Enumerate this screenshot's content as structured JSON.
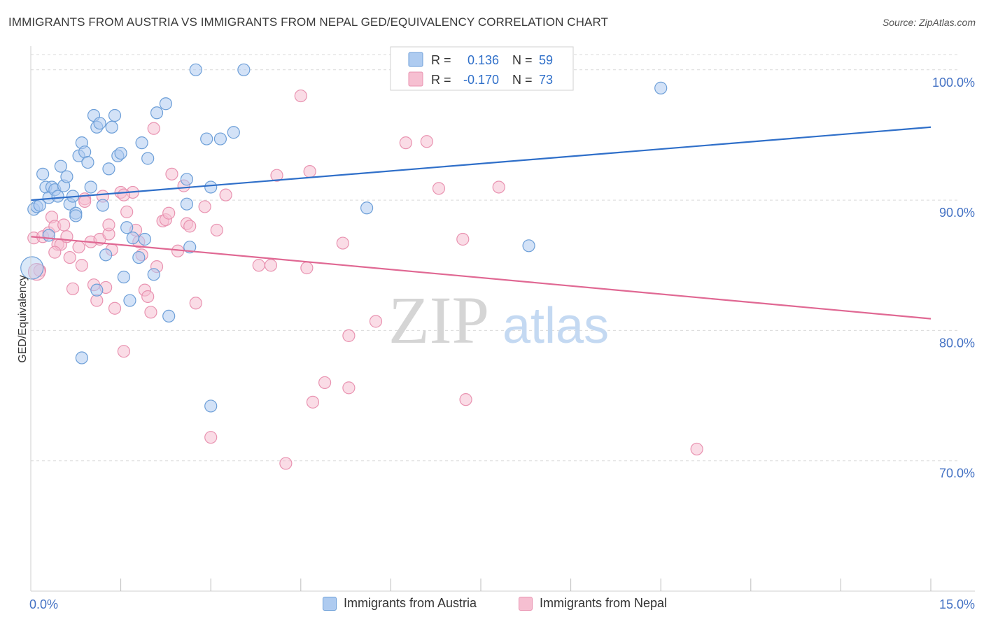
{
  "title": "IMMIGRANTS FROM AUSTRIA VS IMMIGRANTS FROM NEPAL GED/EQUIVALENCY CORRELATION CHART",
  "source": "Source: ZipAtlas.com",
  "watermark": {
    "zip": "ZIP",
    "atlas": "atlas"
  },
  "colors": {
    "austria_fill": "#aecbf0",
    "austria_stroke": "#6d9fd8",
    "austria_line": "#2f6fc9",
    "nepal_fill": "#f6bfd1",
    "nepal_stroke": "#e993b1",
    "nepal_line": "#e06893",
    "axis_text": "#4472c4",
    "grid": "#d9d9d9"
  },
  "stats_legend": {
    "austria": {
      "r_label": "R =",
      "r_value": "0.136",
      "n_label": "N =",
      "n_value": "59"
    },
    "nepal": {
      "r_label": "R =",
      "r_value": "-0.170",
      "n_label": "N =",
      "n_value": "73"
    }
  },
  "legend": {
    "austria": "Immigrants from Austria",
    "nepal": "Immigrants from Nepal"
  },
  "chart_data": {
    "type": "scatter",
    "ylabel": "GED/Equivalency",
    "xlim": [
      0,
      15
    ],
    "ylim": [
      60,
      101.6
    ],
    "x_tick_labels": [
      {
        "value": 0,
        "label": "0.0%"
      },
      {
        "value": 15,
        "label": "15.0%"
      }
    ],
    "x_minor_ticks": [
      1.5,
      3.0,
      4.5,
      6.0,
      7.5,
      9.0,
      10.5,
      12.0,
      13.5,
      15.0
    ],
    "y_ticks": [
      {
        "value": 100,
        "label": "100.0%"
      },
      {
        "value": 90,
        "label": "90.0%"
      },
      {
        "value": 80,
        "label": "80.0%"
      },
      {
        "value": 70,
        "label": "70.0%"
      }
    ],
    "series": [
      {
        "name": "Immigrants from Austria",
        "trend": {
          "x": [
            0,
            15
          ],
          "y": [
            90.0,
            95.6
          ]
        },
        "points": [
          [
            0.05,
            89.3
          ],
          [
            0.1,
            89.5
          ],
          [
            0.15,
            89.6
          ],
          [
            0.2,
            92.0
          ],
          [
            0.25,
            91.0
          ],
          [
            0.3,
            90.2
          ],
          [
            0.35,
            91.0
          ],
          [
            0.4,
            90.8
          ],
          [
            0.45,
            90.3
          ],
          [
            0.5,
            92.6
          ],
          [
            0.55,
            91.1
          ],
          [
            0.6,
            91.8
          ],
          [
            0.65,
            89.7
          ],
          [
            0.7,
            90.3
          ],
          [
            0.75,
            89.0
          ],
          [
            0.8,
            93.4
          ],
          [
            0.85,
            94.4
          ],
          [
            0.9,
            93.7
          ],
          [
            0.95,
            92.9
          ],
          [
            1.0,
            91.0
          ],
          [
            1.05,
            96.5
          ],
          [
            1.1,
            95.6
          ],
          [
            1.15,
            95.9
          ],
          [
            1.2,
            89.6
          ],
          [
            1.25,
            85.8
          ],
          [
            1.3,
            92.4
          ],
          [
            1.35,
            95.6
          ],
          [
            1.4,
            96.5
          ],
          [
            1.45,
            93.4
          ],
          [
            1.5,
            93.6
          ],
          [
            1.55,
            84.1
          ],
          [
            1.6,
            87.9
          ],
          [
            1.65,
            82.3
          ],
          [
            1.7,
            87.1
          ],
          [
            1.8,
            85.6
          ],
          [
            1.85,
            94.4
          ],
          [
            1.9,
            87.0
          ],
          [
            1.95,
            93.2
          ],
          [
            2.05,
            84.3
          ],
          [
            2.1,
            96.7
          ],
          [
            2.25,
            97.4
          ],
          [
            2.3,
            81.1
          ],
          [
            2.6,
            91.6
          ],
          [
            2.6,
            89.7
          ],
          [
            2.65,
            86.4
          ],
          [
            2.75,
            100.0
          ],
          [
            2.93,
            94.7
          ],
          [
            3.0,
            91.0
          ],
          [
            3.16,
            94.7
          ],
          [
            3.38,
            95.2
          ],
          [
            3.55,
            100.0
          ],
          [
            5.6,
            89.4
          ],
          [
            8.3,
            86.5
          ],
          [
            10.5,
            98.6
          ],
          [
            0.85,
            77.9
          ],
          [
            3.0,
            74.2
          ],
          [
            1.1,
            83.1
          ],
          [
            0.3,
            87.3
          ],
          [
            0.75,
            88.8
          ]
        ]
      },
      {
        "name": "Immigrants from Nepal",
        "trend": {
          "x": [
            0,
            15
          ],
          "y": [
            87.2,
            80.9
          ]
        },
        "points": [
          [
            0.05,
            87.1
          ],
          [
            0.15,
            84.6
          ],
          [
            0.2,
            87.2
          ],
          [
            0.3,
            87.5
          ],
          [
            0.35,
            88.7
          ],
          [
            0.4,
            88.0
          ],
          [
            0.45,
            86.6
          ],
          [
            0.5,
            86.6
          ],
          [
            0.55,
            88.1
          ],
          [
            0.6,
            87.2
          ],
          [
            0.65,
            85.6
          ],
          [
            0.7,
            83.2
          ],
          [
            0.8,
            86.4
          ],
          [
            0.85,
            85.0
          ],
          [
            0.9,
            90.1
          ],
          [
            1.0,
            86.8
          ],
          [
            1.05,
            83.5
          ],
          [
            1.1,
            82.3
          ],
          [
            1.15,
            87.0
          ],
          [
            1.2,
            90.3
          ],
          [
            1.25,
            83.3
          ],
          [
            1.3,
            87.4
          ],
          [
            1.35,
            86.2
          ],
          [
            1.4,
            81.7
          ],
          [
            1.5,
            90.6
          ],
          [
            1.55,
            78.4
          ],
          [
            1.6,
            89.1
          ],
          [
            1.7,
            90.6
          ],
          [
            1.75,
            87.7
          ],
          [
            1.8,
            86.8
          ],
          [
            1.85,
            85.8
          ],
          [
            1.9,
            83.1
          ],
          [
            1.95,
            82.6
          ],
          [
            2.0,
            81.4
          ],
          [
            2.05,
            95.5
          ],
          [
            2.1,
            84.9
          ],
          [
            2.2,
            88.4
          ],
          [
            2.25,
            88.5
          ],
          [
            2.3,
            89.0
          ],
          [
            2.35,
            92.0
          ],
          [
            2.45,
            86.1
          ],
          [
            2.55,
            91.1
          ],
          [
            2.6,
            88.2
          ],
          [
            2.65,
            88.0
          ],
          [
            2.75,
            82.1
          ],
          [
            2.9,
            89.5
          ],
          [
            3.0,
            71.8
          ],
          [
            3.1,
            87.7
          ],
          [
            3.25,
            90.4
          ],
          [
            3.8,
            85.0
          ],
          [
            4.0,
            85.0
          ],
          [
            4.1,
            91.9
          ],
          [
            4.25,
            69.8
          ],
          [
            4.5,
            98.0
          ],
          [
            4.6,
            84.8
          ],
          [
            4.7,
            74.5
          ],
          [
            4.65,
            92.2
          ],
          [
            4.9,
            76.0
          ],
          [
            5.2,
            86.7
          ],
          [
            5.3,
            75.6
          ],
          [
            5.3,
            79.6
          ],
          [
            5.75,
            80.7
          ],
          [
            6.25,
            94.4
          ],
          [
            6.6,
            94.5
          ],
          [
            6.8,
            90.9
          ],
          [
            7.2,
            87.0
          ],
          [
            7.25,
            74.7
          ],
          [
            7.8,
            91.0
          ],
          [
            11.1,
            70.9
          ],
          [
            1.3,
            88.1
          ],
          [
            0.9,
            89.9
          ],
          [
            1.55,
            90.4
          ],
          [
            0.4,
            86.0
          ]
        ]
      }
    ]
  }
}
